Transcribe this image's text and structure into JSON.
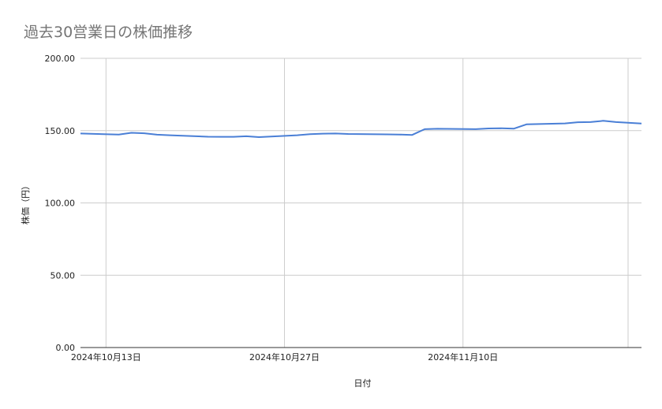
{
  "chart_data": {
    "type": "line",
    "title": "過去30営業日の株価推移",
    "xlabel": "日付",
    "ylabel": "株価（円）",
    "ylim": [
      0,
      200
    ],
    "y_ticks": [
      "0.00",
      "50.00",
      "100.00",
      "150.00",
      "200.00"
    ],
    "x_ticks": [
      "2024年10月13日",
      "2024年10月27日",
      "2024年11月10日"
    ],
    "x_tick_dates": [
      "2024-10-13",
      "2024-10-27",
      "2024-11-10"
    ],
    "xlim": [
      "2024-10-11",
      "2024-11-24"
    ],
    "grid": true,
    "legend": "none",
    "colors": {
      "line": "#4a7fd6",
      "grid": "#cccccc",
      "axis": "#333333"
    },
    "series": [
      {
        "x": [
          "2024-10-11",
          "2024-10-14",
          "2024-10-15",
          "2024-10-16",
          "2024-10-17",
          "2024-10-18",
          "2024-10-21",
          "2024-10-22",
          "2024-10-23",
          "2024-10-24",
          "2024-10-25",
          "2024-10-28",
          "2024-10-29",
          "2024-10-30",
          "2024-10-31",
          "2024-11-01",
          "2024-11-04",
          "2024-11-05",
          "2024-11-06",
          "2024-11-07",
          "2024-11-08",
          "2024-11-11",
          "2024-11-12",
          "2024-11-13",
          "2024-11-14",
          "2024-11-15",
          "2024-11-18",
          "2024-11-19",
          "2024-11-20",
          "2024-11-21",
          "2024-11-22",
          "2024-11-24"
        ],
        "values": [
          148.0,
          147.3,
          148.5,
          148.2,
          147.2,
          146.8,
          145.8,
          145.7,
          145.7,
          146.1,
          145.5,
          146.8,
          147.5,
          147.9,
          148.0,
          147.7,
          147.4,
          147.3,
          147.0,
          151.0,
          151.3,
          151.0,
          151.5,
          151.6,
          151.4,
          154.4,
          155.0,
          155.8,
          155.9,
          156.8,
          155.9,
          154.9
        ]
      }
    ]
  }
}
